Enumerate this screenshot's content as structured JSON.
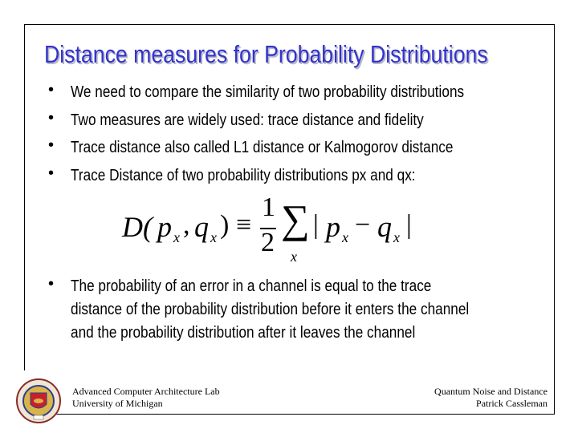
{
  "title": "Distance measures for Probability Distributions",
  "bullets": [
    "We need to compare the similarity of two probability distributions",
    "Two measures are widely used: trace distance and fidelity",
    "Trace distance also called L1 distance or Kalmogorov distance",
    "Trace Distance of two probability distributions px and qx:"
  ],
  "bullet_char": "•",
  "formula": {
    "lhs_D": "D(",
    "p": "p",
    "q": "q",
    "sub_x": "x",
    "comma": ",",
    "close": ")",
    "equiv": "≡",
    "numerator": "1",
    "denominator": "2",
    "sum": "∑",
    "bar": "|",
    "minus": "−"
  },
  "final_bullet": [
    "The probability of an error in a channel is equal to the trace",
    "distance of the probability distribution before it enters the channel",
    "and the probability distribution after it leaves the channel"
  ],
  "footer": {
    "left_line1": "Advanced Computer Architecture Lab",
    "left_line2": "University of Michigan",
    "right_line1": "Quantum Noise and Distance",
    "right_line2": "Patrick Cassleman",
    "seal_text": "THE UNIVERSITY OF MICHIGAN 1817"
  },
  "colors": {
    "title": "#3333cc",
    "seal_red": "#c8202a",
    "seal_gold": "#d9b44a",
    "seal_blue": "#2c3e8c"
  }
}
